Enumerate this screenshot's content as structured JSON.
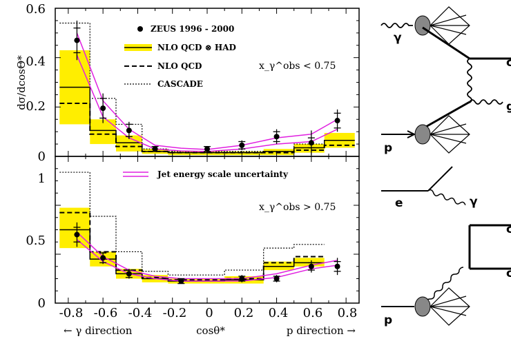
{
  "chart_data": [
    {
      "type": "line",
      "panel": "upper",
      "ylabel": "dσ/dcosΘ*",
      "xlabel": "cosθ*",
      "xlim": [
        -0.875,
        0.875
      ],
      "ylim": [
        0,
        0.6
      ],
      "x_ticks": [
        "-0.8",
        "-0.6",
        "-0.4",
        "-0.2",
        "0",
        "0.2",
        "0.4",
        "0.6",
        "0.8"
      ],
      "y_ticks": [
        "0",
        "0.2",
        "0.4",
        "0.6"
      ],
      "annotation": "x_γ^obs < 0.75",
      "bin_edges": [
        -0.85,
        -0.675,
        -0.525,
        -0.375,
        -0.225,
        0.1,
        0.325,
        0.5,
        0.675,
        0.85
      ],
      "legend": [
        {
          "label": "ZEUS 1996 - 2000",
          "style": "marker"
        },
        {
          "label": "NLO QCD ⊗ HAD",
          "style": "band"
        },
        {
          "label": "NLO QCD",
          "style": "dashed"
        },
        {
          "label": "CASCADE",
          "style": "dotted"
        }
      ],
      "series": [
        {
          "name": "ZEUS 1996 - 2000",
          "x": [
            -0.75,
            -0.6,
            -0.45,
            -0.3,
            0.0,
            0.2,
            0.4,
            0.6,
            0.75
          ],
          "y": [
            0.47,
            0.195,
            0.105,
            0.03,
            0.03,
            0.045,
            0.08,
            0.055,
            0.145
          ],
          "err": [
            0.05,
            0.04,
            0.025,
            0.01,
            0.01,
            0.015,
            0.02,
            0.02,
            0.03
          ],
          "syst": [
            0.08,
            0.06,
            0.035,
            0.012,
            0.012,
            0.02,
            0.03,
            0.05,
            0.045
          ]
        },
        {
          "name": "NLO QCD ⊗ HAD",
          "y": [
            0.28,
            0.105,
            0.055,
            0.02,
            0.015,
            0.015,
            0.02,
            0.035,
            0.065
          ],
          "band_low": [
            0.13,
            0.05,
            0.02,
            0.01,
            0.005,
            0.005,
            0.005,
            0.015,
            0.035
          ],
          "band_high": [
            0.43,
            0.15,
            0.085,
            0.03,
            0.02,
            0.02,
            0.03,
            0.05,
            0.095
          ]
        },
        {
          "name": "NLO QCD",
          "y": [
            0.215,
            0.09,
            0.04,
            0.02,
            0.015,
            0.015,
            0.015,
            0.025,
            0.045
          ]
        },
        {
          "name": "CASCADE",
          "y": [
            0.54,
            0.235,
            0.13,
            0.03,
            0.02,
            0.02,
            0.02,
            0.05,
            0.065
          ]
        },
        {
          "name": "Jet energy scale uncertainty",
          "x": [
            -0.75,
            -0.6,
            -0.45,
            -0.3,
            -0.15,
            0.0,
            0.2,
            0.4,
            0.6,
            0.75
          ],
          "lower": [
            0.41,
            0.16,
            0.075,
            0.03,
            0.022,
            0.02,
            0.03,
            0.05,
            0.06,
            0.11
          ],
          "upper": [
            0.5,
            0.225,
            0.11,
            0.045,
            0.033,
            0.028,
            0.045,
            0.075,
            0.09,
            0.15
          ]
        }
      ]
    },
    {
      "type": "line",
      "panel": "lower",
      "xlabel": "cosθ*",
      "xlim": [
        -0.875,
        0.875
      ],
      "ylim": [
        0,
        1.2
      ],
      "x_ticks": [
        "-0.8",
        "-0.6",
        "-0.4",
        "-0.2",
        "0",
        "0.2",
        "0.4",
        "0.6",
        "0.8"
      ],
      "y_ticks": [
        "0",
        "0.5",
        "1"
      ],
      "annotation": "x_γ^obs > 0.75",
      "bin_edges": [
        -0.85,
        -0.675,
        -0.525,
        -0.375,
        -0.225,
        0.1,
        0.325,
        0.5,
        0.675,
        0.85
      ],
      "legend": [
        {
          "label": "Jet energy scale uncertainty",
          "style": "magenta-double"
        }
      ],
      "series": [
        {
          "name": "ZEUS 1996 - 2000",
          "x": [
            -0.75,
            -0.6,
            -0.45,
            -0.15,
            0.2,
            0.4,
            0.6,
            0.75
          ],
          "y": [
            0.56,
            0.37,
            0.24,
            0.18,
            0.2,
            0.2,
            0.3,
            0.3
          ],
          "err": [
            0.06,
            0.04,
            0.03,
            0.02,
            0.02,
            0.02,
            0.03,
            0.04
          ],
          "syst": [
            0.1,
            0.05,
            0.04,
            0.02,
            0.03,
            0.03,
            0.05,
            0.07
          ]
        },
        {
          "name": "NLO QCD ⊗ HAD",
          "y": [
            0.6,
            0.36,
            0.24,
            0.2,
            0.18,
            0.19,
            0.3,
            0.33
          ],
          "band_low": [
            0.45,
            0.3,
            0.2,
            0.17,
            0.16,
            0.16,
            0.27,
            0.3
          ],
          "band_high": [
            0.78,
            0.42,
            0.28,
            0.23,
            0.2,
            0.22,
            0.34,
            0.37
          ]
        },
        {
          "name": "NLO QCD",
          "y": [
            0.74,
            0.42,
            0.27,
            0.21,
            0.19,
            0.2,
            0.33,
            0.38
          ]
        },
        {
          "name": "CASCADE",
          "y": [
            1.07,
            0.71,
            0.42,
            0.26,
            0.23,
            0.27,
            0.45,
            0.48
          ]
        },
        {
          "name": "Jet energy scale uncertainty",
          "x": [
            -0.75,
            -0.6,
            -0.45,
            -0.3,
            -0.15,
            0.0,
            0.2,
            0.4,
            0.6,
            0.75
          ],
          "lower": [
            0.52,
            0.34,
            0.24,
            0.2,
            0.18,
            0.18,
            0.18,
            0.21,
            0.28,
            0.31
          ],
          "upper": [
            0.58,
            0.38,
            0.27,
            0.22,
            0.2,
            0.2,
            0.2,
            0.24,
            0.31,
            0.35
          ]
        }
      ]
    }
  ],
  "bottom_labels": {
    "left": "← γ direction",
    "right": "p direction →"
  },
  "diagrams": [
    {
      "labels": [
        "γ",
        "c",
        "g",
        "p"
      ],
      "line_color": "#000000",
      "blob_color": "#777777"
    },
    {
      "labels": [
        "e",
        "γ",
        "c",
        "c̄",
        "p"
      ],
      "line_color": "#000000",
      "blob_color": "#777777"
    }
  ],
  "colors": {
    "band": "#ffee00",
    "jes": "#e020e0",
    "data": "#000000"
  }
}
